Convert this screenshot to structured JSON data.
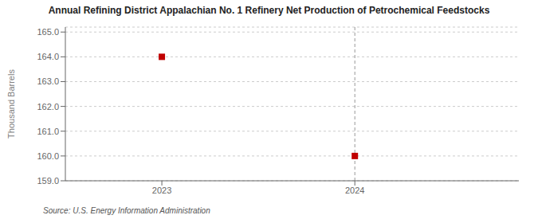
{
  "chart_data": {
    "type": "scatter",
    "title": "Annual Refining District Appalachian No. 1 Refinery Net Production of Petrochemical Feedstocks",
    "ylabel": "Thousand Barrels",
    "source": "Source: U.S. Energy Information Administration",
    "x": [
      2023,
      2024
    ],
    "values": [
      164.0,
      160.0
    ],
    "color": "#c00000",
    "marker": "square",
    "xlim": [
      2022.5,
      2024.85
    ],
    "ylim": [
      159.0,
      165.2
    ],
    "xticks": [
      2023,
      2024
    ],
    "yticks": [
      {
        "value": 159.0,
        "label": "159.0"
      },
      {
        "value": 160.0,
        "label": "160.0"
      },
      {
        "value": 161.0,
        "label": "161.0"
      },
      {
        "value": 162.0,
        "label": "162.0"
      },
      {
        "value": 163.0,
        "label": "163.0"
      },
      {
        "value": 164.0,
        "label": "164.0"
      },
      {
        "value": 165.0,
        "label": "165.0"
      }
    ],
    "grid": true,
    "vline_x": 2024
  }
}
